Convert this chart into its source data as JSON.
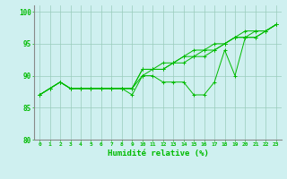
{
  "xlabel": "Humidité relative (%)",
  "ylabel": "",
  "xlim": [
    -0.5,
    23.5
  ],
  "ylim": [
    80,
    101
  ],
  "yticks": [
    80,
    85,
    90,
    95,
    100
  ],
  "xtick_labels": [
    "0",
    "1",
    "2",
    "3",
    "4",
    "5",
    "6",
    "7",
    "8",
    "9",
    "10",
    "11",
    "12",
    "13",
    "14",
    "15",
    "16",
    "17",
    "18",
    "19",
    "20",
    "21",
    "22",
    "23"
  ],
  "background_color": "#cff0f0",
  "grid_color": "#99ccbb",
  "line_color": "#00bb00",
  "series": [
    [
      87,
      88,
      89,
      88,
      88,
      88,
      88,
      88,
      88,
      87,
      90,
      90,
      89,
      89,
      89,
      87,
      87,
      89,
      94,
      90,
      96,
      96,
      97,
      98
    ],
    [
      87,
      88,
      89,
      88,
      88,
      88,
      88,
      88,
      88,
      88,
      91,
      91,
      91,
      92,
      93,
      93,
      94,
      94,
      95,
      96,
      96,
      97,
      97,
      98
    ],
    [
      87,
      88,
      89,
      88,
      88,
      88,
      88,
      88,
      88,
      88,
      91,
      91,
      92,
      92,
      93,
      94,
      94,
      95,
      95,
      96,
      97,
      97,
      97,
      98
    ],
    [
      87,
      88,
      89,
      88,
      88,
      88,
      88,
      88,
      88,
      88,
      90,
      91,
      91,
      92,
      92,
      93,
      93,
      94,
      95,
      96,
      96,
      96,
      97,
      98
    ]
  ]
}
